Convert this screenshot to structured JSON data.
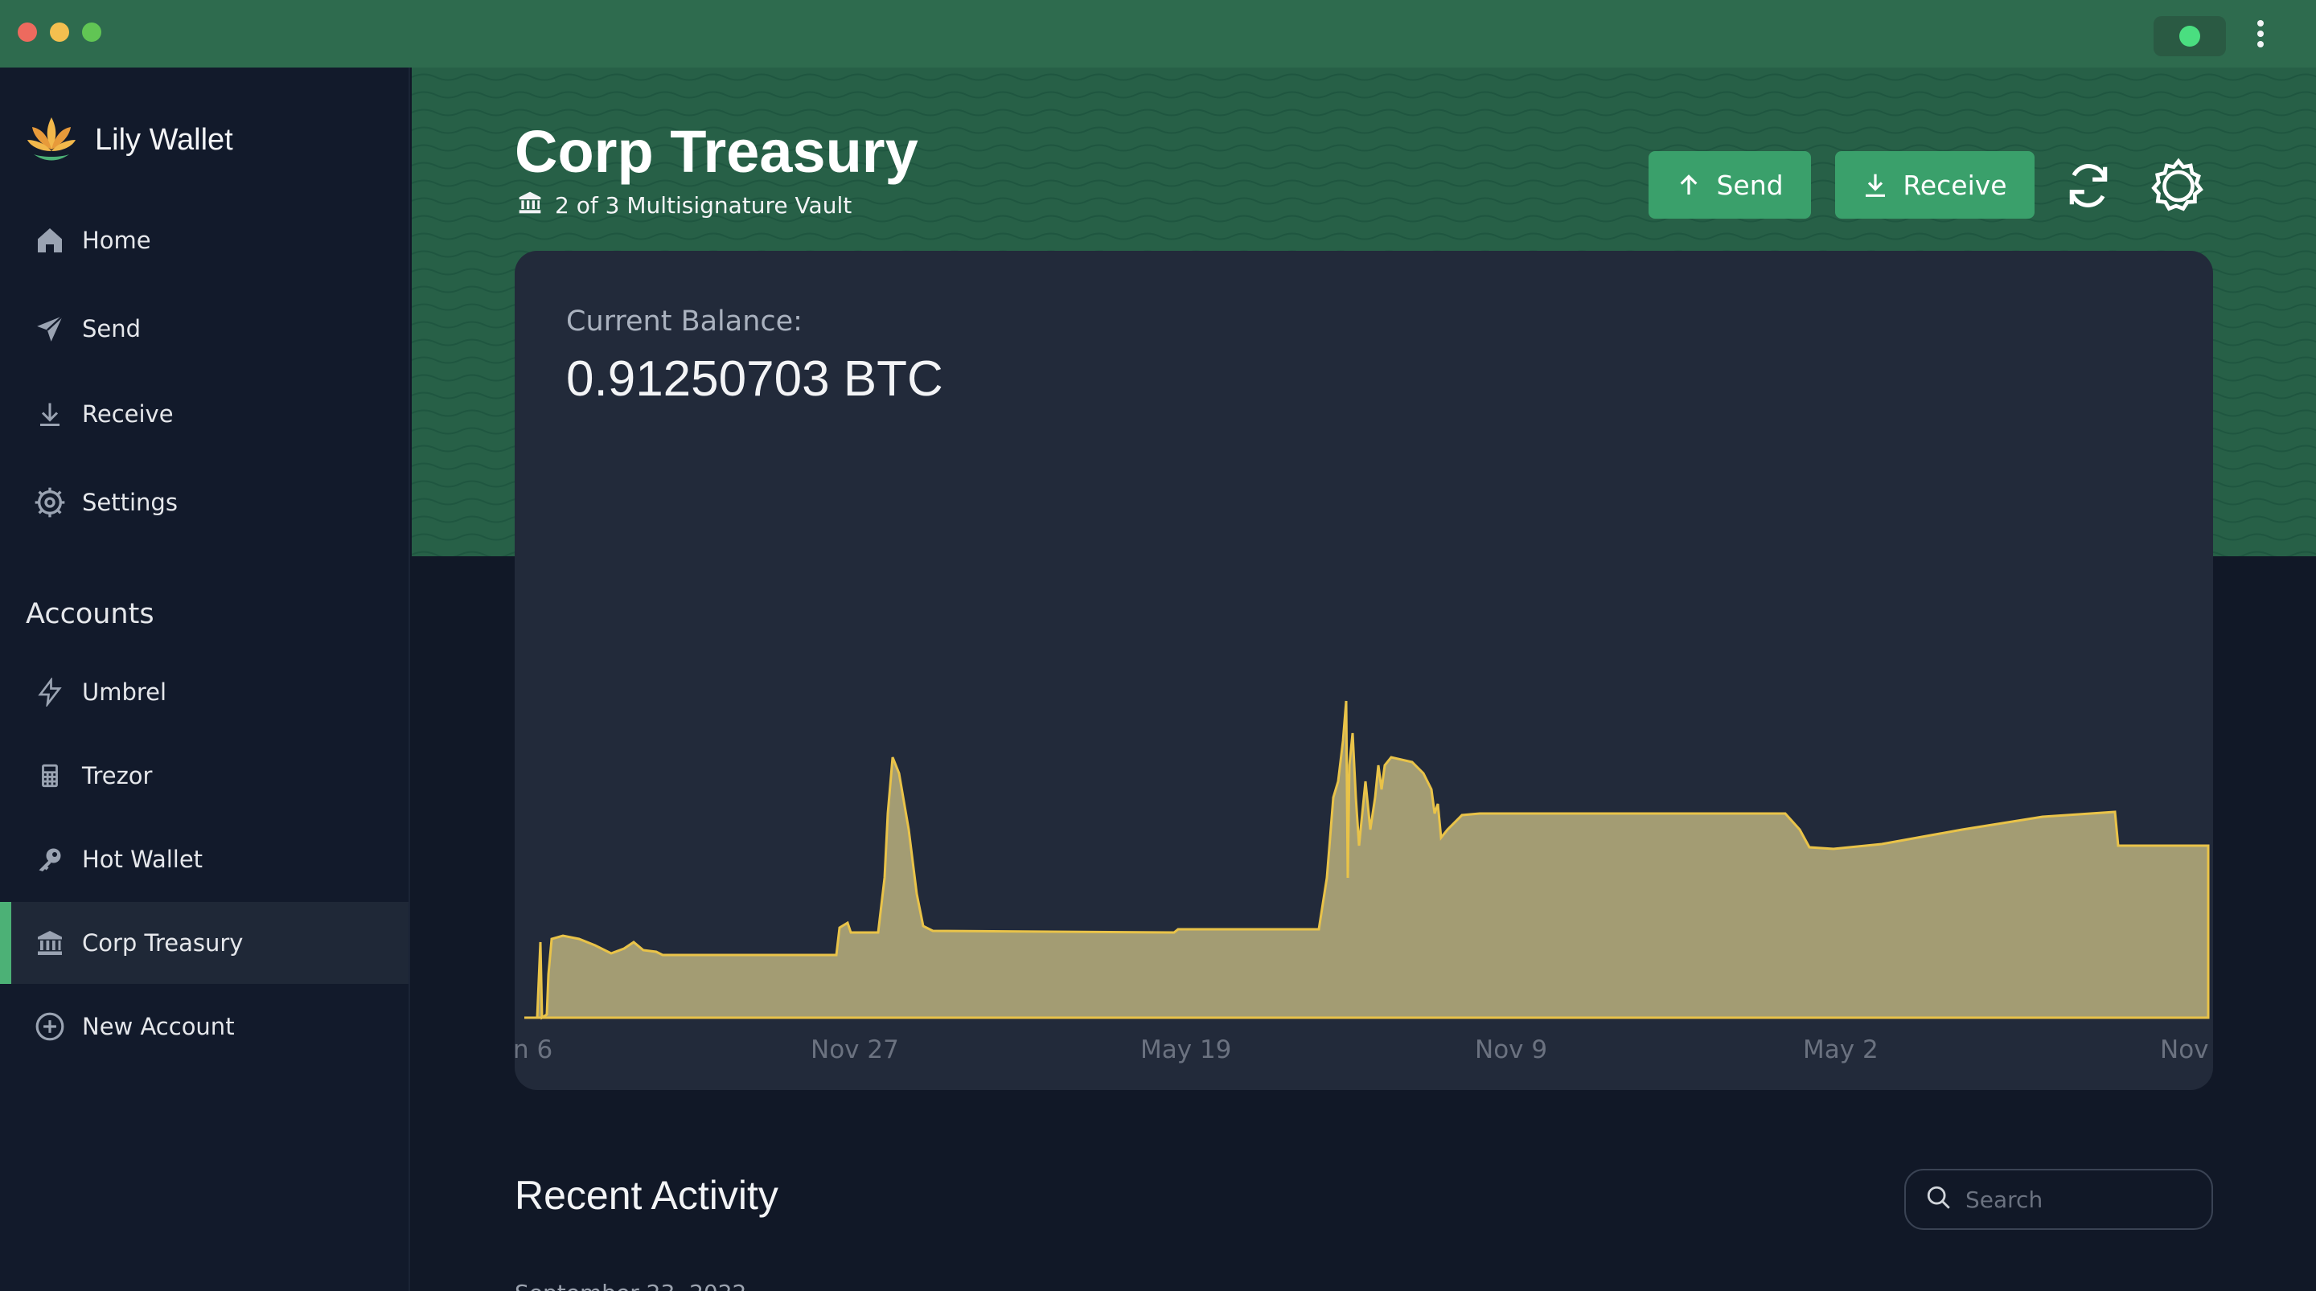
{
  "window": {
    "controls": [
      "close",
      "minimize",
      "zoom"
    ],
    "status_color": "#4ade80"
  },
  "brand": {
    "name": "Lily Wallet",
    "accent": "#3aa06b"
  },
  "nav": {
    "items": [
      {
        "label": "Home",
        "icon": "home-icon"
      },
      {
        "label": "Send",
        "icon": "send-icon"
      },
      {
        "label": "Receive",
        "icon": "download-icon"
      },
      {
        "label": "Settings",
        "icon": "gear-icon"
      }
    ]
  },
  "accounts": {
    "title": "Accounts",
    "items": [
      {
        "label": "Umbrel",
        "icon": "lightning-icon"
      },
      {
        "label": "Trezor",
        "icon": "calculator-icon"
      },
      {
        "label": "Hot Wallet",
        "icon": "key-icon"
      },
      {
        "label": "Corp Treasury",
        "icon": "bank-icon",
        "active": true
      },
      {
        "label": "New Account",
        "icon": "plus-circle-icon"
      }
    ]
  },
  "header": {
    "title": "Corp Treasury",
    "subtitle": "2 of 3 Multisignature Vault",
    "send_label": "Send",
    "receive_label": "Receive"
  },
  "balance": {
    "label": "Current Balance:",
    "value": "0.91250703 BTC"
  },
  "chart_data": {
    "type": "area",
    "title": "",
    "xlabel": "",
    "ylabel": "",
    "x_ticks": [
      "n 6",
      "Nov 27",
      "May 19",
      "Nov 9",
      "May 2",
      "Nov"
    ],
    "grid": false,
    "legend": "none",
    "color": "#e9c349",
    "fill": "#a39c73"
  },
  "recent": {
    "title": "Recent Activity",
    "search_placeholder": "Search",
    "partial_row": "September 23, 2022"
  }
}
